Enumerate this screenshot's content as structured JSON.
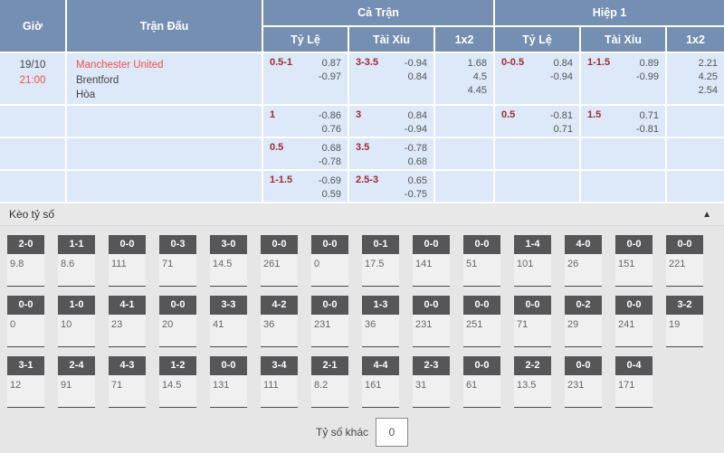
{
  "colors": {
    "header_bg": "#748fb2",
    "row_bg": "#dde8f8",
    "accent_red": "#f0504e",
    "line_maroon": "#9b2c35",
    "section_bg": "#e6e6e6",
    "badge_bg": "#565658"
  },
  "odds_table": {
    "headers": {
      "time": "Giờ",
      "match": "Trận Đấu",
      "full_time": "Cả Trận",
      "first_half": "Hiệp 1",
      "handicap": "Tỷ Lệ",
      "over_under": "Tài Xỉu",
      "one_x_two": "1x2"
    },
    "match": {
      "date": "19/10",
      "time": "21:00",
      "home": "Manchester United",
      "away": "Brentford",
      "draw": "Hòa"
    },
    "rows": [
      {
        "ft_hdp": {
          "line": "0.5-1",
          "v1": "0.87",
          "v2": "-0.97"
        },
        "ft_ou": {
          "line": "3-3.5",
          "v1": "-0.94",
          "v2": "0.84"
        },
        "ft_1x2": [
          "1.68",
          "4.5",
          "4.45"
        ],
        "h1_hdp": {
          "line": "0-0.5",
          "v1": "0.84",
          "v2": "-0.94"
        },
        "h1_ou": {
          "line": "1-1.5",
          "v1": "0.89",
          "v2": "-0.99"
        },
        "h1_1x2": [
          "2.21",
          "4.25",
          "2.54"
        ]
      },
      {
        "ft_hdp": {
          "line": "1",
          "v1": "-0.86",
          "v2": "0.76"
        },
        "ft_ou": {
          "line": "3",
          "v1": "0.84",
          "v2": "-0.94"
        },
        "ft_1x2": [],
        "h1_hdp": {
          "line": "0.5",
          "v1": "-0.81",
          "v2": "0.71"
        },
        "h1_ou": {
          "line": "1.5",
          "v1": "0.71",
          "v2": "-0.81"
        },
        "h1_1x2": []
      },
      {
        "ft_hdp": {
          "line": "0.5",
          "v1": "0.68",
          "v2": "-0.78"
        },
        "ft_ou": {
          "line": "3.5",
          "v1": "-0.78",
          "v2": "0.68"
        },
        "ft_1x2": [],
        "h1_hdp": null,
        "h1_ou": null,
        "h1_1x2": []
      },
      {
        "ft_hdp": {
          "line": "1-1.5",
          "v1": "-0.69",
          "v2": "0.59"
        },
        "ft_ou": {
          "line": "2.5-3",
          "v1": "0.65",
          "v2": "-0.75"
        },
        "ft_1x2": [],
        "h1_hdp": null,
        "h1_ou": null,
        "h1_1x2": []
      }
    ]
  },
  "score_section": {
    "title": "Kèo tỷ số",
    "collapse_icon": "▲",
    "rows": [
      [
        {
          "score": "2-0",
          "odds": "9.8"
        },
        {
          "score": "1-1",
          "odds": "8.6"
        },
        {
          "score": "0-0",
          "odds": "111"
        },
        {
          "score": "0-3",
          "odds": "71"
        },
        {
          "score": "3-0",
          "odds": "14.5"
        },
        {
          "score": "0-0",
          "odds": "261"
        },
        {
          "score": "0-0",
          "odds": "0"
        },
        {
          "score": "0-1",
          "odds": "17.5"
        },
        {
          "score": "0-0",
          "odds": "141"
        },
        {
          "score": "0-0",
          "odds": "51"
        },
        {
          "score": "1-4",
          "odds": "101"
        },
        {
          "score": "4-0",
          "odds": "26"
        },
        {
          "score": "0-0",
          "odds": "151"
        },
        {
          "score": "0-0",
          "odds": "221"
        }
      ],
      [
        {
          "score": "0-0",
          "odds": "0"
        },
        {
          "score": "1-0",
          "odds": "10"
        },
        {
          "score": "4-1",
          "odds": "23"
        },
        {
          "score": "0-0",
          "odds": "20"
        },
        {
          "score": "3-3",
          "odds": "41"
        },
        {
          "score": "4-2",
          "odds": "36"
        },
        {
          "score": "0-0",
          "odds": "231"
        },
        {
          "score": "1-3",
          "odds": "36"
        },
        {
          "score": "0-0",
          "odds": "231"
        },
        {
          "score": "0-0",
          "odds": "251"
        },
        {
          "score": "0-0",
          "odds": "71"
        },
        {
          "score": "0-2",
          "odds": "29"
        },
        {
          "score": "0-0",
          "odds": "241"
        },
        {
          "score": "3-2",
          "odds": "19"
        }
      ],
      [
        {
          "score": "3-1",
          "odds": "12"
        },
        {
          "score": "2-4",
          "odds": "91"
        },
        {
          "score": "4-3",
          "odds": "71"
        },
        {
          "score": "1-2",
          "odds": "14.5"
        },
        {
          "score": "0-0",
          "odds": "131"
        },
        {
          "score": "3-4",
          "odds": "111"
        },
        {
          "score": "2-1",
          "odds": "8.2"
        },
        {
          "score": "4-4",
          "odds": "161"
        },
        {
          "score": "2-3",
          "odds": "31"
        },
        {
          "score": "0-0",
          "odds": "61"
        },
        {
          "score": "2-2",
          "odds": "13.5"
        },
        {
          "score": "0-0",
          "odds": "231"
        },
        {
          "score": "0-4",
          "odds": "171"
        }
      ]
    ],
    "other_score": {
      "label": "Tỷ số khác",
      "value": "0"
    }
  }
}
